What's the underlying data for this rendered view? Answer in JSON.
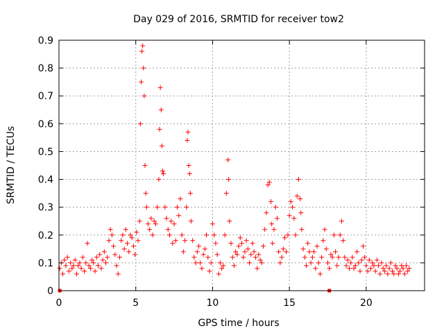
{
  "chart_data": {
    "type": "scatter",
    "title": "Day 029 of 2016, SRMTID for receiver tow2",
    "xlabel": "GPS time / hours",
    "ylabel": "SRMTID / TECUs",
    "xlim": [
      0,
      23.8
    ],
    "ylim": [
      0,
      0.9
    ],
    "xticks": [
      0,
      5,
      10,
      15,
      20
    ],
    "xtick_labels": [
      "0",
      "5",
      "10",
      "15",
      "20"
    ],
    "yticks": [
      0,
      0.1,
      0.2,
      0.3,
      0.4,
      0.5,
      0.6,
      0.7,
      0.8,
      0.9
    ],
    "ytick_labels": [
      "0",
      "0.1",
      "0.2",
      "0.3",
      "0.4",
      "0.5",
      "0.6",
      "0.7",
      "0.8",
      "0.9"
    ],
    "grid": true,
    "marker": "plus",
    "marker_color": "#ff0000",
    "series": [
      {
        "name": "SRMTID",
        "x": [
          0.05,
          0.15,
          0.25,
          0.35,
          0.45,
          0.55,
          0.65,
          0.75,
          0.85,
          0.95,
          1.05,
          1.15,
          1.25,
          1.35,
          1.45,
          1.55,
          1.65,
          1.75,
          1.85,
          1.95,
          2.05,
          2.15,
          2.25,
          2.35,
          2.45,
          2.55,
          2.65,
          2.75,
          2.85,
          2.95,
          3.05,
          3.15,
          3.25,
          3.35,
          3.45,
          3.55,
          3.65,
          3.75,
          3.85,
          3.95,
          4.05,
          4.15,
          4.25,
          4.35,
          4.45,
          4.55,
          4.65,
          4.75,
          4.85,
          4.95,
          5.05,
          5.15,
          5.25,
          5.3,
          5.35,
          5.4,
          5.45,
          5.5,
          5.55,
          5.6,
          5.65,
          5.7,
          5.8,
          5.9,
          6.0,
          6.1,
          6.2,
          6.3,
          6.4,
          6.5,
          6.55,
          6.6,
          6.65,
          6.7,
          6.75,
          6.8,
          6.9,
          7.0,
          7.1,
          7.2,
          7.3,
          7.4,
          7.5,
          7.6,
          7.7,
          7.8,
          7.9,
          8.0,
          8.1,
          8.2,
          8.3,
          8.35,
          8.4,
          8.45,
          8.5,
          8.55,
          8.6,
          8.7,
          8.8,
          8.9,
          9.0,
          9.1,
          9.2,
          9.3,
          9.4,
          9.5,
          9.6,
          9.7,
          9.8,
          9.9,
          10.0,
          10.1,
          10.2,
          10.3,
          10.4,
          10.5,
          10.6,
          10.7,
          10.8,
          10.9,
          11.0,
          11.05,
          11.1,
          11.2,
          11.3,
          11.4,
          11.5,
          11.6,
          11.7,
          11.8,
          11.9,
          12.0,
          12.1,
          12.2,
          12.3,
          12.4,
          12.5,
          12.6,
          12.7,
          12.8,
          12.9,
          13.0,
          13.1,
          13.2,
          13.3,
          13.4,
          13.5,
          13.6,
          13.7,
          13.8,
          13.85,
          13.9,
          14.0,
          14.1,
          14.2,
          14.3,
          14.4,
          14.5,
          14.6,
          14.7,
          14.8,
          14.9,
          15.0,
          15.1,
          15.2,
          15.3,
          15.4,
          15.5,
          15.6,
          15.7,
          15.75,
          15.8,
          15.9,
          16.0,
          16.1,
          16.2,
          16.3,
          16.4,
          16.5,
          16.6,
          16.7,
          16.8,
          16.9,
          17.0,
          17.1,
          17.2,
          17.3,
          17.4,
          17.5,
          17.6,
          17.7,
          17.8,
          17.9,
          18.0,
          18.1,
          18.2,
          18.3,
          18.4,
          18.5,
          18.6,
          18.7,
          18.8,
          18.9,
          19.0,
          19.1,
          19.2,
          19.3,
          19.4,
          19.5,
          19.6,
          19.7,
          19.8,
          19.9,
          20.0,
          20.1,
          20.2,
          20.3,
          20.4,
          20.5,
          20.6,
          20.7,
          20.8,
          20.9,
          21.0,
          21.1,
          21.2,
          21.3,
          21.4,
          21.5,
          21.6,
          21.7,
          21.8,
          21.9,
          22.0,
          22.1,
          22.2,
          22.3,
          22.4,
          22.5,
          22.6,
          22.7,
          22.8
        ],
        "y": [
          0.08,
          0.1,
          0.06,
          0.11,
          0.09,
          0.12,
          0.07,
          0.1,
          0.08,
          0.09,
          0.11,
          0.06,
          0.09,
          0.1,
          0.08,
          0.12,
          0.07,
          0.1,
          0.17,
          0.09,
          0.08,
          0.11,
          0.1,
          0.07,
          0.12,
          0.09,
          0.13,
          0.08,
          0.11,
          0.14,
          0.1,
          0.12,
          0.18,
          0.22,
          0.2,
          0.16,
          0.13,
          0.09,
          0.06,
          0.12,
          0.18,
          0.2,
          0.15,
          0.22,
          0.17,
          0.14,
          0.2,
          0.19,
          0.16,
          0.13,
          0.21,
          0.18,
          0.25,
          0.6,
          0.75,
          0.86,
          0.88,
          0.8,
          0.7,
          0.45,
          0.35,
          0.3,
          0.24,
          0.22,
          0.26,
          0.2,
          0.25,
          0.24,
          0.3,
          0.4,
          0.58,
          0.73,
          0.65,
          0.52,
          0.43,
          0.42,
          0.3,
          0.26,
          0.22,
          0.2,
          0.25,
          0.17,
          0.24,
          0.18,
          0.3,
          0.27,
          0.33,
          0.2,
          0.14,
          0.18,
          0.3,
          0.54,
          0.57,
          0.45,
          0.42,
          0.35,
          0.25,
          0.18,
          0.12,
          0.1,
          0.14,
          0.16,
          0.1,
          0.08,
          0.13,
          0.15,
          0.2,
          0.12,
          0.07,
          0.1,
          0.24,
          0.2,
          0.17,
          0.13,
          0.06,
          0.1,
          0.08,
          0.09,
          0.2,
          0.35,
          0.47,
          0.4,
          0.25,
          0.17,
          0.12,
          0.09,
          0.14,
          0.13,
          0.16,
          0.19,
          0.17,
          0.12,
          0.14,
          0.18,
          0.15,
          0.1,
          0.13,
          0.17,
          0.14,
          0.12,
          0.08,
          0.13,
          0.11,
          0.1,
          0.16,
          0.22,
          0.28,
          0.38,
          0.39,
          0.32,
          0.24,
          0.17,
          0.22,
          0.3,
          0.26,
          0.14,
          0.1,
          0.12,
          0.15,
          0.19,
          0.14,
          0.2,
          0.27,
          0.32,
          0.3,
          0.26,
          0.2,
          0.34,
          0.4,
          0.33,
          0.28,
          0.22,
          0.15,
          0.12,
          0.09,
          0.17,
          0.14,
          0.1,
          0.12,
          0.14,
          0.08,
          0.16,
          0.1,
          0.06,
          0.12,
          0.18,
          0.22,
          0.15,
          0.1,
          0.08,
          0.13,
          0.12,
          0.2,
          0.14,
          0.09,
          0.12,
          0.2,
          0.25,
          0.18,
          0.12,
          0.09,
          0.11,
          0.08,
          0.1,
          0.12,
          0.08,
          0.09,
          0.14,
          0.1,
          0.07,
          0.11,
          0.16,
          0.12,
          0.09,
          0.07,
          0.11,
          0.08,
          0.1,
          0.09,
          0.07,
          0.11,
          0.09,
          0.06,
          0.1,
          0.08,
          0.07,
          0.09,
          0.06,
          0.08,
          0.1,
          0.07,
          0.06,
          0.09,
          0.08,
          0.06,
          0.07,
          0.09,
          0.08,
          0.06,
          0.09,
          0.07,
          0.08
        ]
      }
    ],
    "zero_markers_x": [
      0.05,
      17.6
    ]
  }
}
